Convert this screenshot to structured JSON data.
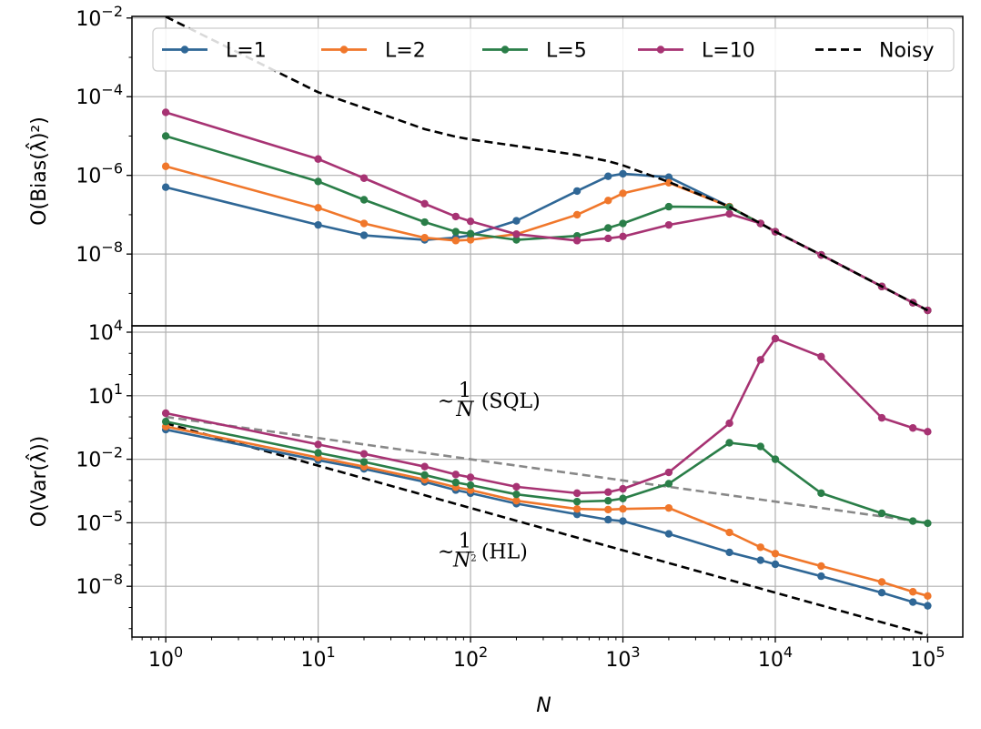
{
  "chart_data": [
    {
      "type": "line",
      "panel": "top",
      "ylabel": "O(Bias(λ̂)²)",
      "xlabel": "",
      "xscale": "log",
      "yscale": "log",
      "xlim": [
        0.6,
        170000
      ],
      "ylim": [
        1.5e-10,
        0.011
      ],
      "yticks": [
        {
          "value": 0.01,
          "base": "10",
          "exp": "−2"
        },
        {
          "value": 0.0001,
          "base": "10",
          "exp": "−4"
        },
        {
          "value": 1e-06,
          "base": "10",
          "exp": "−6"
        },
        {
          "value": 1e-08,
          "base": "10",
          "exp": "−8"
        }
      ],
      "grid": true,
      "legend": "top",
      "series": [
        {
          "name": "L=1",
          "color": "#2f6796",
          "style": "solid-dot",
          "x": [
            1,
            10,
            20,
            50,
            80,
            100,
            200,
            500,
            800,
            1000,
            2000,
            5000,
            8000,
            10000,
            20000,
            50000,
            80000,
            100000
          ],
          "y": [
            5e-07,
            5.5e-08,
            3e-08,
            2.3e-08,
            2.6e-08,
            3e-08,
            7e-08,
            4e-07,
            9.5e-07,
            1.1e-06,
            9e-07,
            1.6e-07,
            6e-08,
            3.7e-08,
            9.5e-09,
            1.5e-09,
            5.8e-10,
            3.7e-10
          ]
        },
        {
          "name": "L=2",
          "color": "#f0772b",
          "style": "solid-dot",
          "x": [
            1,
            10,
            20,
            50,
            80,
            100,
            200,
            500,
            800,
            1000,
            2000,
            5000,
            8000,
            10000,
            20000,
            50000,
            80000,
            100000
          ],
          "y": [
            1.7e-06,
            1.5e-07,
            6e-08,
            2.6e-08,
            2.2e-08,
            2.3e-08,
            3.2e-08,
            1e-07,
            2.3e-07,
            3.5e-07,
            6.5e-07,
            1.6e-07,
            6e-08,
            3.7e-08,
            9.5e-09,
            1.5e-09,
            5.8e-10,
            3.7e-10
          ]
        },
        {
          "name": "L=5",
          "color": "#2a7e48",
          "style": "solid-dot",
          "x": [
            1,
            10,
            20,
            50,
            80,
            100,
            200,
            500,
            800,
            1000,
            2000,
            5000,
            8000,
            10000,
            20000,
            50000,
            80000,
            100000
          ],
          "y": [
            1e-05,
            7e-07,
            2.4e-07,
            6.5e-08,
            3.7e-08,
            3.3e-08,
            2.3e-08,
            2.9e-08,
            4.6e-08,
            6e-08,
            1.6e-07,
            1.55e-07,
            6e-08,
            3.7e-08,
            9.5e-09,
            1.5e-09,
            5.8e-10,
            3.7e-10
          ]
        },
        {
          "name": "L=10",
          "color": "#a73373",
          "style": "solid-dot",
          "x": [
            1,
            10,
            20,
            50,
            80,
            100,
            200,
            500,
            800,
            1000,
            2000,
            5000,
            8000,
            10000,
            20000,
            50000,
            80000,
            100000
          ],
          "y": [
            4e-05,
            2.6e-06,
            8.5e-07,
            1.9e-07,
            9e-08,
            6.8e-08,
            3.2e-08,
            2.2e-08,
            2.5e-08,
            2.8e-08,
            5.5e-08,
            1.05e-07,
            6e-08,
            3.7e-08,
            9.5e-09,
            1.5e-09,
            5.8e-10,
            3.7e-10
          ]
        },
        {
          "name": "Noisy",
          "color": "#000000",
          "style": "dashed",
          "x": [
            1,
            10,
            20,
            50,
            80,
            100,
            200,
            500,
            800,
            1000,
            2000,
            5000,
            8000,
            10000,
            20000,
            50000,
            80000,
            100000
          ],
          "y": [
            0.0108,
            0.00013,
            5.2e-05,
            1.5e-05,
            9.6e-06,
            8.2e-06,
            5.6e-06,
            3.3e-06,
            2.3e-06,
            1.8e-06,
            6.8e-07,
            1.6e-07,
            6e-08,
            3.7e-08,
            9.5e-09,
            1.5e-09,
            5.8e-10,
            3.7e-10
          ]
        }
      ]
    },
    {
      "type": "line",
      "panel": "bottom",
      "ylabel": "O(Var(λ̂))",
      "xlabel": "N",
      "xscale": "log",
      "yscale": "log",
      "xlim": [
        0.6,
        170000
      ],
      "ylim": [
        4e-11,
        20000
      ],
      "xticks": [
        {
          "value": 1,
          "base": "10",
          "exp": "0"
        },
        {
          "value": 10,
          "base": "10",
          "exp": "1"
        },
        {
          "value": 100,
          "base": "10",
          "exp": "2"
        },
        {
          "value": 1000,
          "base": "10",
          "exp": "3"
        },
        {
          "value": 10000,
          "base": "10",
          "exp": "4"
        },
        {
          "value": 100000,
          "base": "10",
          "exp": "5"
        }
      ],
      "yticks": [
        {
          "value": 10000,
          "base": "10",
          "exp": "4"
        },
        {
          "value": 10,
          "base": "10",
          "exp": "1"
        },
        {
          "value": 0.01,
          "base": "10",
          "exp": "−2"
        },
        {
          "value": 1e-05,
          "base": "10",
          "exp": "−5"
        },
        {
          "value": 1e-08,
          "base": "10",
          "exp": "−8"
        }
      ],
      "grid": true,
      "annotations": [
        {
          "prefix": "~",
          "num": "1",
          "den": "N",
          "den_exp": "",
          "suffix": "(SQL)",
          "x": 80,
          "y": 6
        },
        {
          "prefix": "~",
          "num": "1",
          "den": "N",
          "den_exp": "2",
          "suffix": "(HL)",
          "x": 80,
          "y": 4.5e-07
        }
      ],
      "series": [
        {
          "name": "SQL reference",
          "color": "#888888",
          "style": "dashed",
          "x": [
            1,
            100000
          ],
          "y": [
            1,
            1e-05
          ]
        },
        {
          "name": "HL reference",
          "color": "#000000",
          "style": "dashed",
          "x": [
            1,
            100000
          ],
          "y": [
            0.5,
            5e-11
          ]
        },
        {
          "name": "L=1",
          "color": "#2f6796",
          "style": "solid-dot",
          "x": [
            1,
            10,
            20,
            50,
            80,
            100,
            200,
            500,
            800,
            1000,
            2000,
            5000,
            8000,
            10000,
            20000,
            50000,
            80000,
            100000
          ],
          "y": [
            0.25,
            0.009,
            0.0035,
            0.00085,
            0.00035,
            0.00025,
            8e-05,
            2.5e-05,
            1.4e-05,
            1.2e-05,
            3e-06,
            4e-07,
            1.7e-07,
            1.1e-07,
            3e-08,
            5e-09,
            1.8e-09,
            1.2e-09
          ]
        },
        {
          "name": "L=2",
          "color": "#f0772b",
          "style": "solid-dot",
          "x": [
            1,
            10,
            20,
            50,
            80,
            100,
            200,
            500,
            800,
            1000,
            2000,
            5000,
            8000,
            10000,
            20000,
            50000,
            80000,
            100000
          ],
          "y": [
            0.35,
            0.012,
            0.0045,
            0.0011,
            0.00048,
            0.00035,
            0.00011,
            4.5e-05,
            4.2e-05,
            4.5e-05,
            5e-05,
            3.5e-06,
            7e-07,
            3.5e-07,
            9e-08,
            1.6e-08,
            5.5e-09,
            3.5e-09
          ]
        },
        {
          "name": "L=5",
          "color": "#2a7e48",
          "style": "solid-dot",
          "x": [
            1,
            10,
            20,
            50,
            80,
            100,
            200,
            500,
            800,
            1000,
            2000,
            5000,
            8000,
            10000,
            20000,
            50000,
            80000,
            100000
          ],
          "y": [
            0.6,
            0.02,
            0.0075,
            0.0018,
            0.0008,
            0.0006,
            0.00022,
            0.0001,
            0.00011,
            0.00014,
            0.0007,
            0.06,
            0.04,
            0.01,
            0.00025,
            2.8e-05,
            1.2e-05,
            9.5e-06
          ]
        },
        {
          "name": "L=10",
          "color": "#a73373",
          "style": "solid-dot",
          "x": [
            1,
            10,
            20,
            50,
            80,
            100,
            200,
            500,
            800,
            1000,
            2000,
            5000,
            8000,
            10000,
            20000,
            50000,
            80000,
            100000
          ],
          "y": [
            1.5,
            0.05,
            0.018,
            0.0045,
            0.0019,
            0.0014,
            0.0005,
            0.00025,
            0.00028,
            0.0004,
            0.0024,
            0.5,
            500,
            5000,
            700,
            0.9,
            0.3,
            0.2
          ]
        }
      ]
    }
  ],
  "legend": {
    "items": [
      {
        "label": "L=1",
        "color": "#2f6796",
        "style": "solid-dot"
      },
      {
        "label": "L=2",
        "color": "#f0772b",
        "style": "solid-dot"
      },
      {
        "label": "L=5",
        "color": "#2a7e48",
        "style": "solid-dot"
      },
      {
        "label": "L=10",
        "color": "#a73373",
        "style": "solid-dot"
      },
      {
        "label": "Noisy",
        "color": "#000000",
        "style": "dashed"
      }
    ]
  }
}
